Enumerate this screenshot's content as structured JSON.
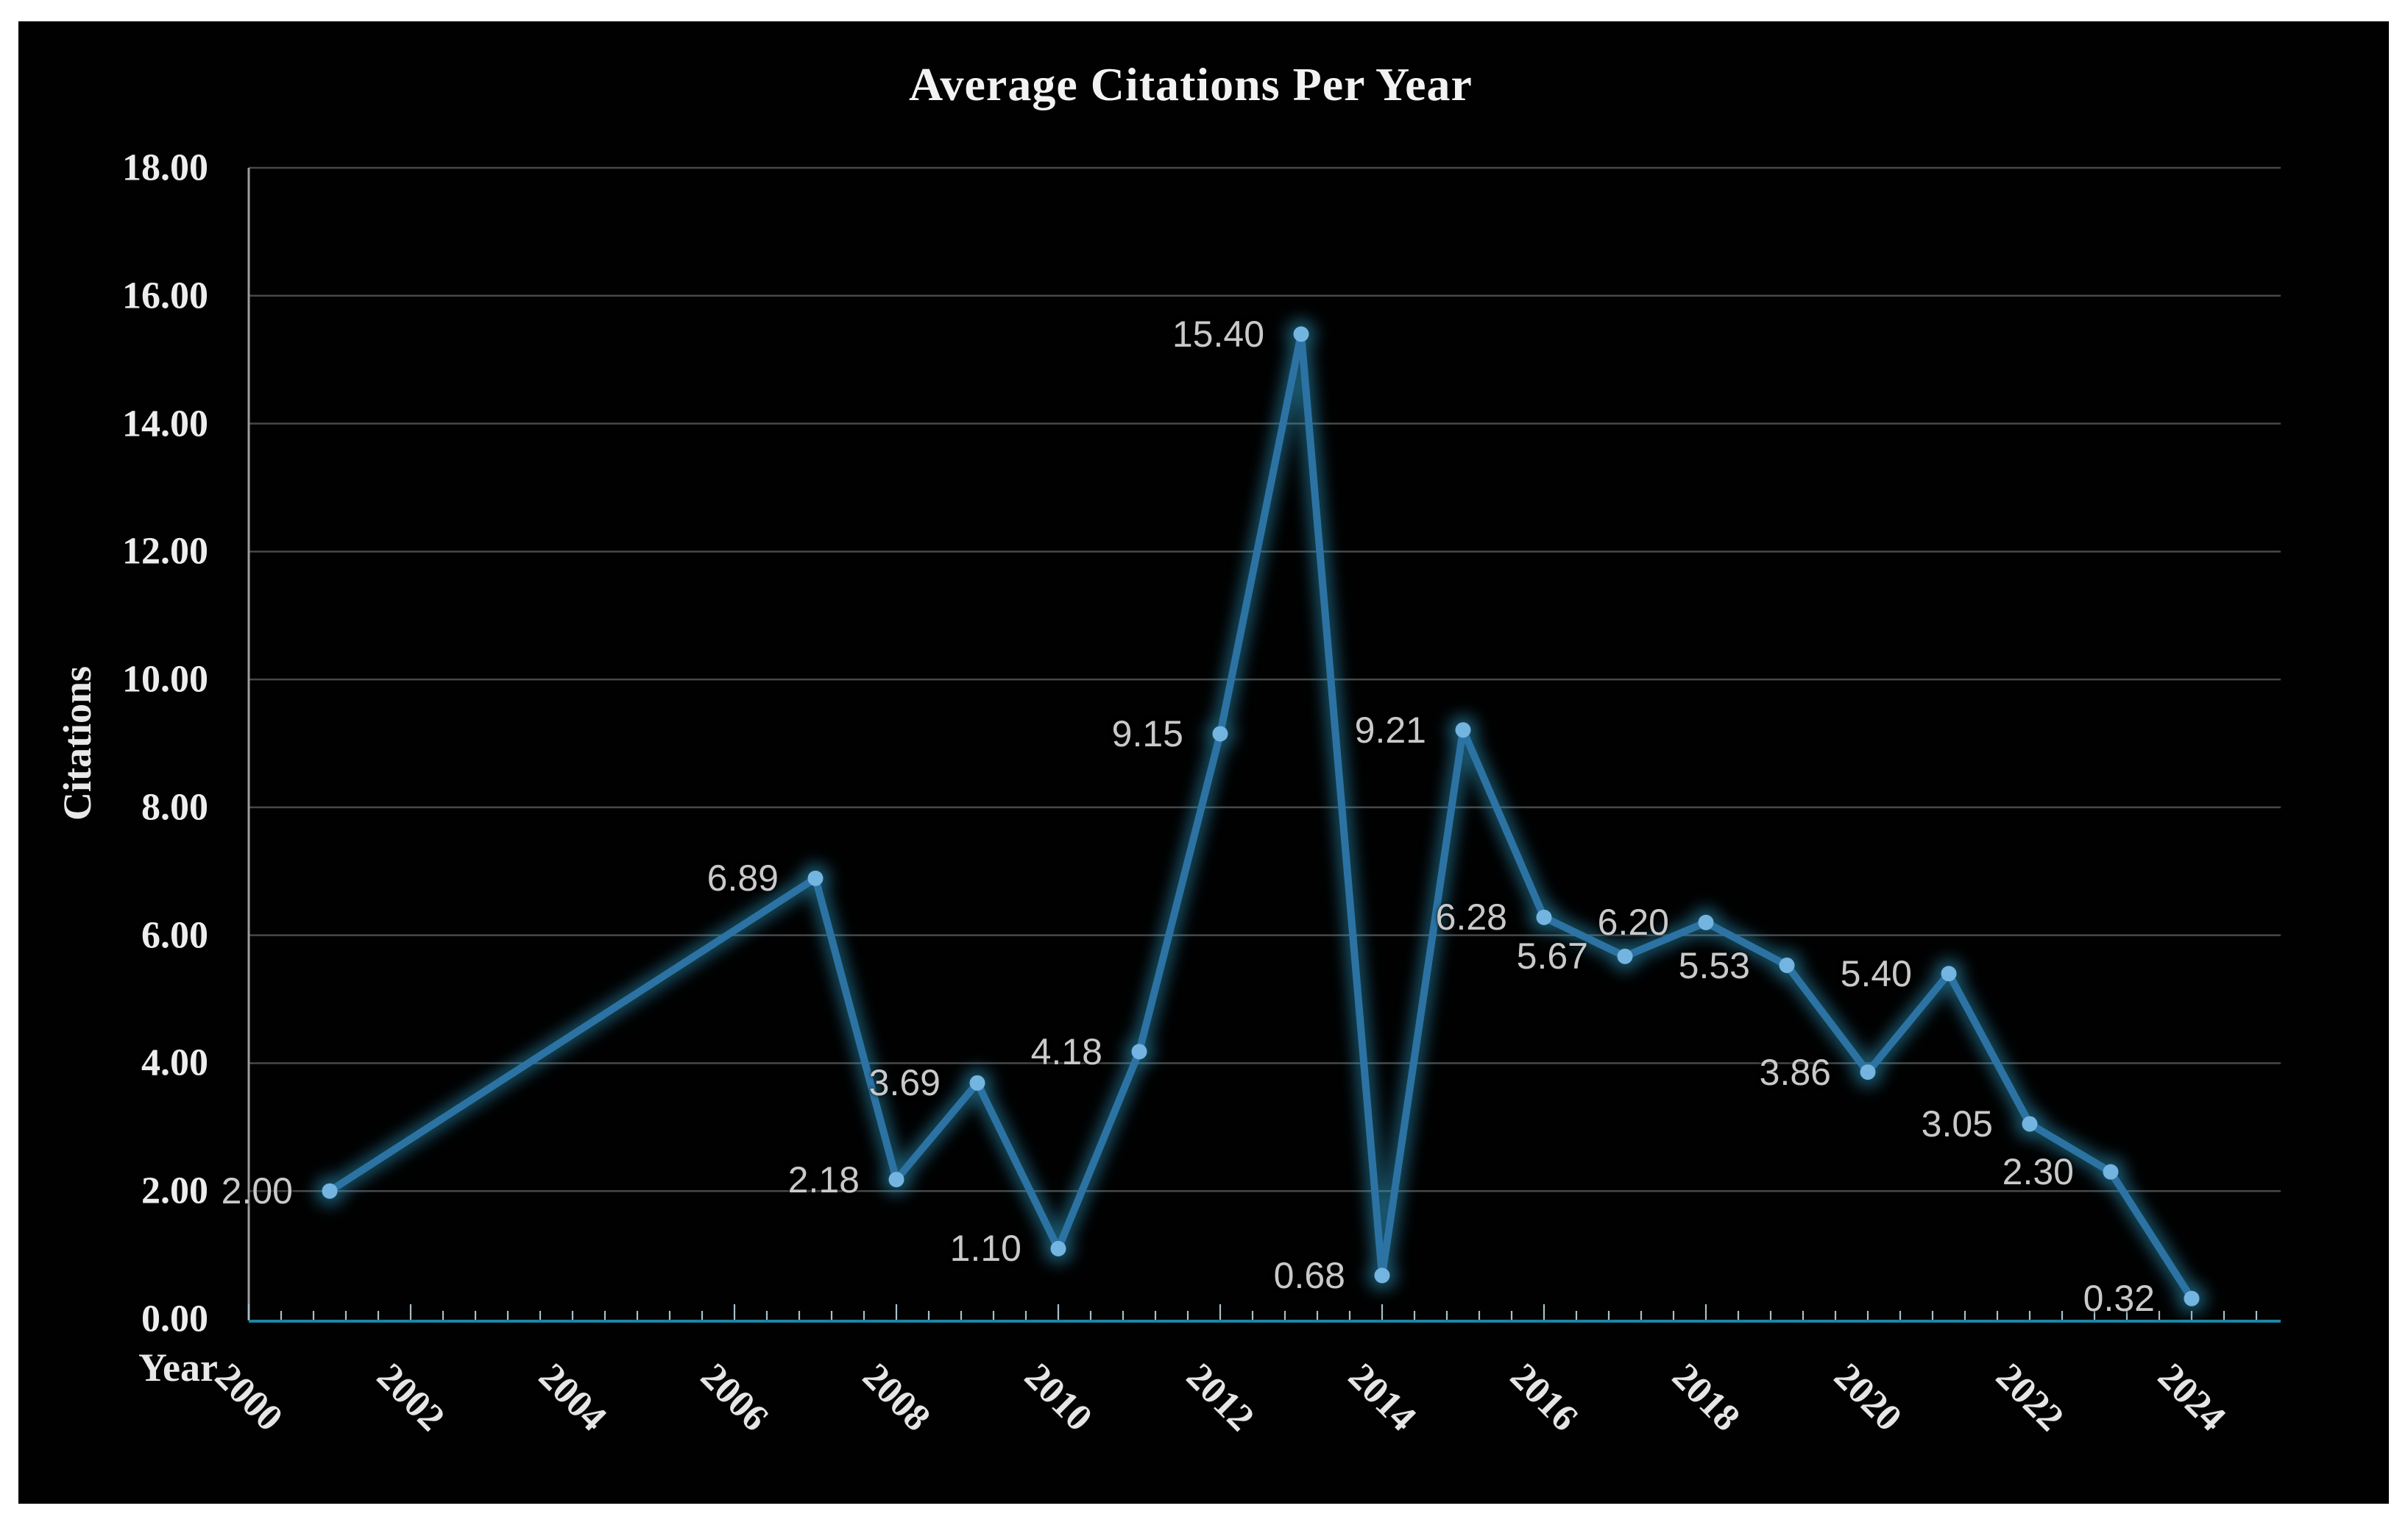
{
  "chart_data": {
    "type": "line",
    "title": "Average Citations Per Year",
    "xlabel": "Year",
    "ylabel": "Citations",
    "x": [
      2001,
      2007,
      2008,
      2009,
      2010,
      2011,
      2012,
      2013,
      2014,
      2015,
      2016,
      2017,
      2018,
      2019,
      2020,
      2021,
      2022,
      2023,
      2024
    ],
    "series": [
      {
        "name": "Average Citations Per Year",
        "values": [
          2.0,
          6.89,
          2.18,
          3.69,
          1.1,
          4.18,
          9.15,
          15.4,
          0.68,
          9.21,
          6.28,
          5.67,
          6.2,
          5.53,
          3.86,
          5.4,
          3.05,
          2.3,
          0.32
        ]
      }
    ],
    "point_labels": [
      "2.00",
      "6.89",
      "2.18",
      "3.69",
      "1.10",
      "4.18",
      "9.15",
      "15.40",
      "0.68",
      "9.21",
      "6.28",
      "5.67",
      "6.20",
      "5.53",
      "3.86",
      "5.40",
      "3.05",
      "2.30",
      "0.32"
    ],
    "x_tick_labels": [
      "2000",
      "2002",
      "2004",
      "2006",
      "2008",
      "2010",
      "2012",
      "2014",
      "2016",
      "2018",
      "2020",
      "2022",
      "2024"
    ],
    "y_tick_labels": [
      "0.00",
      "2.00",
      "4.00",
      "6.00",
      "8.00",
      "10.00",
      "12.00",
      "14.00",
      "16.00",
      "18.00"
    ],
    "xlim": [
      2000,
      2025.1
    ],
    "ylim": [
      0,
      18
    ],
    "x_major_tick_every_years": 2,
    "x_minor_ticks_per_major": 5,
    "grid": true,
    "legend": false,
    "colors": {
      "background": "#010101",
      "frame": "#ffffff",
      "line": "#2c73a3",
      "line_glow": "#2e9fc9",
      "marker": "#74b4e0",
      "grid": "#484848",
      "y_axis_line": "#9e9e9e",
      "x_axis_line": "#1e84a2",
      "tick": "#a9bfc9",
      "tick_text": "#ededed",
      "data_label": "#c9c9c9",
      "title_text": "#f2f2f2"
    }
  }
}
